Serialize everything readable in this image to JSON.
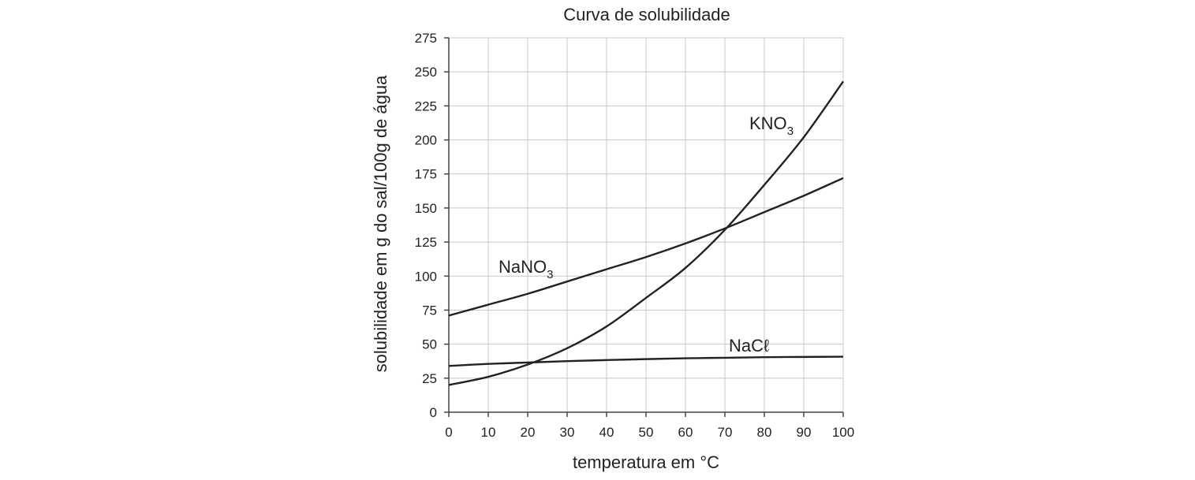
{
  "chart_data": {
    "type": "line",
    "title": "Curva de solubilidade",
    "xlabel": "temperatura em °C",
    "ylabel": "solubilidade em g do sal/100g de água",
    "xlim": [
      0,
      100
    ],
    "ylim": [
      0,
      275
    ],
    "xticks": [
      "0",
      "10",
      "20",
      "30",
      "40",
      "50",
      "60",
      "70",
      "80",
      "90",
      "100"
    ],
    "yticks": [
      "0",
      "25",
      "50",
      "75",
      "100",
      "125",
      "150",
      "175",
      "200",
      "225",
      "250",
      "275"
    ],
    "grid": true,
    "legend": "none",
    "series": [
      {
        "name": "KNO3",
        "label_main": "KNO",
        "label_sub": "3",
        "x": [
          0,
          10,
          20,
          30,
          40,
          50,
          60,
          70,
          80,
          90,
          100
        ],
        "y": [
          20,
          26,
          35,
          47,
          63,
          84,
          106,
          134,
          167,
          202,
          243
        ]
      },
      {
        "name": "NaNO3",
        "label_main": "NaNO",
        "label_sub": "3",
        "x": [
          0,
          10,
          20,
          30,
          40,
          50,
          60,
          70,
          80,
          90,
          100
        ],
        "y": [
          71,
          79,
          87,
          96,
          105,
          114,
          124,
          135,
          147,
          159,
          172
        ]
      },
      {
        "name": "NaCℓ",
        "label_main": "NaCℓ",
        "label_sub": "",
        "x": [
          0,
          10,
          20,
          30,
          40,
          50,
          60,
          70,
          80,
          90,
          100
        ],
        "y": [
          34,
          35.5,
          36.5,
          37.5,
          38.3,
          39,
          39.6,
          40,
          40.4,
          40.6,
          40.8
        ]
      }
    ]
  }
}
